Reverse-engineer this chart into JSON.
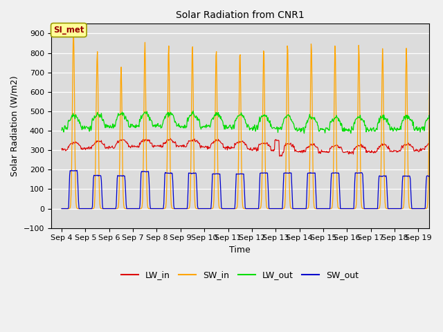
{
  "title": "Solar Radiation from CNR1",
  "xlabel": "Time",
  "ylabel": "Solar Radiation (W/m2)",
  "ylim": [
    -100,
    950
  ],
  "yticks": [
    -100,
    0,
    100,
    200,
    300,
    400,
    500,
    600,
    700,
    800,
    900
  ],
  "xtick_labels": [
    "Sep 4",
    "Sep 5",
    "Sep 6",
    "Sep 7",
    "Sep 8",
    "Sep 9",
    "Sep 10",
    "Sep 11",
    "Sep 12",
    "Sep 13",
    "Sep 14",
    "Sep 15",
    "Sep 16",
    "Sep 17",
    "Sep 18",
    "Sep 19"
  ],
  "xtick_positions": [
    4,
    5,
    6,
    7,
    8,
    9,
    10,
    11,
    12,
    13,
    14,
    15,
    16,
    17,
    18,
    19
  ],
  "colors": {
    "LW_in": "#dd0000",
    "SW_in": "#ffa500",
    "LW_out": "#00dd00",
    "SW_out": "#0000cc"
  },
  "background_color": "#dcdcdc",
  "fig_background": "#f0f0f0",
  "annotation_text": "SI_met",
  "annotation_color": "#990000",
  "annotation_bg": "#ffff99",
  "annotation_border": "#999900"
}
